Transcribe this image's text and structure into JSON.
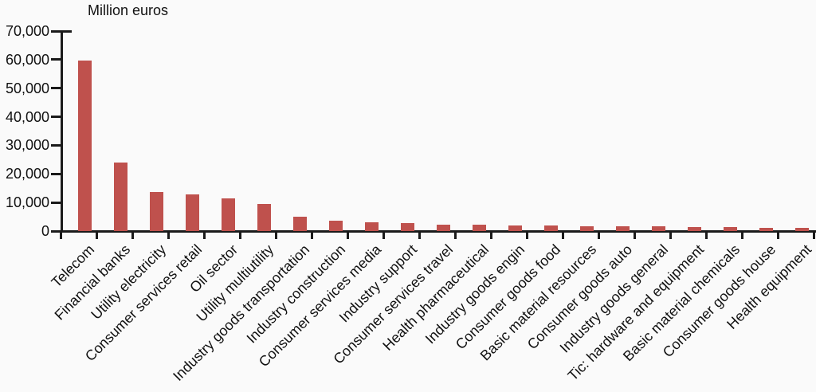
{
  "chart_data": {
    "type": "bar",
    "title": "Million euros",
    "categories": [
      "Telecom",
      "Financial banks",
      "Utility electricity",
      "Consumer services retail",
      "Oil sector",
      "Utility multiutility",
      "Industry goods transportation",
      "Industry construction",
      "Consumer services media",
      "Industry support",
      "Consumer services travel",
      "Health pharmaceutical",
      "Industry goods engin",
      "Consumer goods food",
      "Basic material resources",
      "Consumer goods auto",
      "Industry goods general",
      "Tic: hardware and equipment",
      "Basic material chemicals",
      "Consumer goods house",
      "Health equipment"
    ],
    "values": [
      59600,
      24000,
      13600,
      12700,
      11300,
      9400,
      5100,
      3700,
      3100,
      2900,
      2300,
      2100,
      2000,
      1900,
      1700,
      1700,
      1600,
      1500,
      1400,
      1200,
      1200
    ],
    "xlabel": "",
    "ylabel": "Million euros",
    "ylim": [
      0,
      70000
    ],
    "y_tick_values": [
      0,
      10000,
      20000,
      30000,
      40000,
      50000,
      60000,
      70000
    ],
    "y_tick_labels": [
      "0",
      "10,000",
      "20,000",
      "30,000",
      "40,000",
      "50,000",
      "60,000",
      "70,000"
    ],
    "grid": "off",
    "legend": "none",
    "bar_color": "#bf514d",
    "axis_color": "#1a1a1a",
    "text_color": "#111111",
    "background_color": "#fafafa"
  }
}
